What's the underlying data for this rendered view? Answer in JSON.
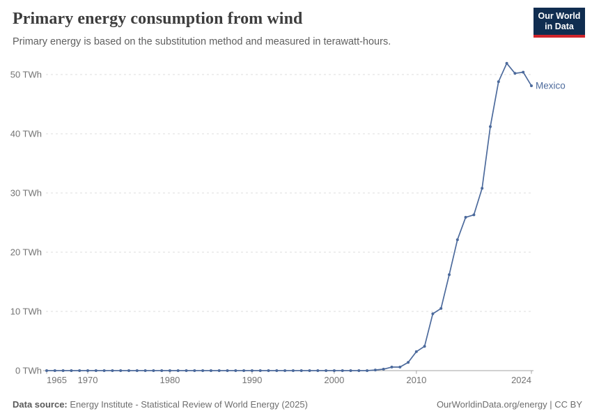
{
  "header": {
    "title": "Primary energy consumption from wind",
    "subtitle": "Primary energy is based on the substitution method and measured in terawatt-hours.",
    "logo": {
      "line1": "Our World",
      "line2": "in Data",
      "bg_color": "#102d50",
      "accent_color": "#d0242b",
      "text_color": "#ffffff"
    }
  },
  "chart_data": {
    "type": "line",
    "title": "Primary energy consumption from wind",
    "xlabel": "",
    "ylabel": "",
    "xlim": [
      1965,
      2024
    ],
    "ylim": [
      0,
      52
    ],
    "grid": "horizontal-dashed",
    "legend_position": "end-of-line-label",
    "x_ticks": [
      1965,
      1970,
      1980,
      1990,
      2000,
      2010,
      2024
    ],
    "y_ticks": [
      0,
      10,
      20,
      30,
      40,
      50
    ],
    "y_tick_suffix": " TWh",
    "colors": {
      "grid": "#dcdcdc",
      "axis": "#a3a3a3",
      "tick_label": "#737373"
    },
    "series": [
      {
        "name": "Mexico",
        "color": "#4c6a9c",
        "x": [
          1965,
          1966,
          1967,
          1968,
          1969,
          1970,
          1971,
          1972,
          1973,
          1974,
          1975,
          1976,
          1977,
          1978,
          1979,
          1980,
          1981,
          1982,
          1983,
          1984,
          1985,
          1986,
          1987,
          1988,
          1989,
          1990,
          1991,
          1992,
          1993,
          1994,
          1995,
          1996,
          1997,
          1998,
          1999,
          2000,
          2001,
          2002,
          2003,
          2004,
          2005,
          2006,
          2007,
          2008,
          2009,
          2010,
          2011,
          2012,
          2013,
          2014,
          2015,
          2016,
          2017,
          2018,
          2019,
          2020,
          2021,
          2022,
          2023,
          2024
        ],
        "values": [
          0,
          0,
          0,
          0,
          0,
          0,
          0,
          0,
          0,
          0,
          0,
          0,
          0,
          0,
          0,
          0,
          0,
          0,
          0,
          0,
          0,
          0,
          0,
          0,
          0,
          0,
          0,
          0,
          0,
          0,
          0,
          0,
          0,
          0,
          0,
          0,
          0,
          0,
          0,
          0,
          0.1,
          0.25,
          0.6,
          0.6,
          1.4,
          3.2,
          4.1,
          9.6,
          10.5,
          16.2,
          22.1,
          25.9,
          26.3,
          30.8,
          41.2,
          48.8,
          51.9,
          50.2,
          50.4,
          48.1
        ]
      }
    ]
  },
  "footer": {
    "source_label": "Data source:",
    "source_text": "Energy Institute - Statistical Review of World Energy (2025)",
    "right_text": "OurWorldinData.org/energy | CC BY"
  }
}
